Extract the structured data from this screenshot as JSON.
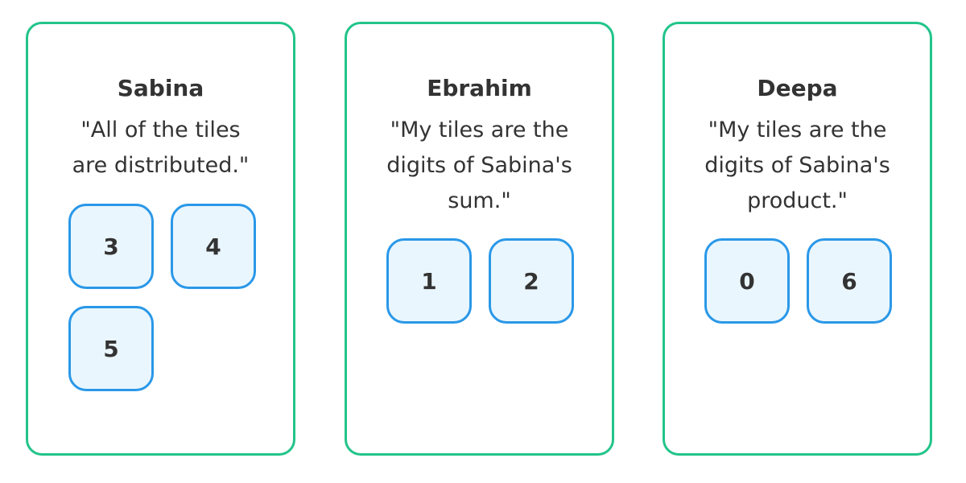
{
  "cards": [
    {
      "name": "Sabina",
      "quote_lines": [
        "\"All of the tiles",
        "are distributed.\""
      ],
      "tiles": [
        "3",
        "4",
        "5"
      ]
    },
    {
      "name": "Ebrahim",
      "quote_lines": [
        "\"My tiles are the",
        "digits of Sabina's",
        "sum.\""
      ],
      "tiles": [
        "1",
        "2"
      ]
    },
    {
      "name": "Deepa",
      "quote_lines": [
        "\"My tiles are the",
        "digits of Sabina's",
        "product.\""
      ],
      "tiles": [
        "0",
        "6"
      ]
    }
  ],
  "colors": {
    "card_border": "#22c48a",
    "tile_border": "#2a98e8",
    "tile_fill": "#eaf6fd",
    "text": "#333333"
  }
}
